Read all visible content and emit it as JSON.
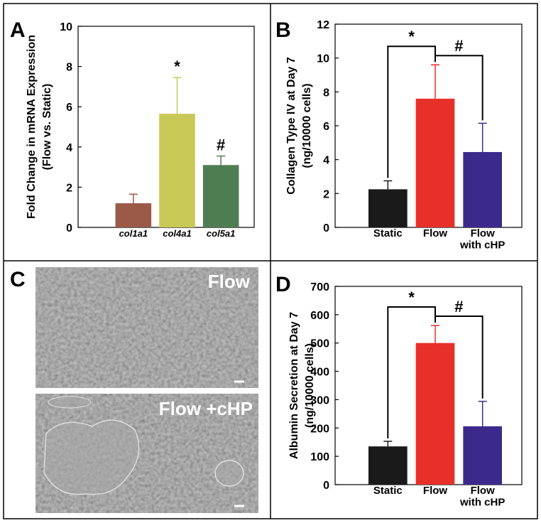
{
  "chart_data": [
    {
      "panel": "A",
      "type": "bar",
      "ylabel": [
        "Fold Change in mRNA Expression",
        "(Flow vs. Static)"
      ],
      "categories": [
        "col1a1",
        "col4a1",
        "col5a1"
      ],
      "category_style": "italic",
      "values": [
        1.2,
        5.65,
        3.1
      ],
      "errors": [
        0.45,
        1.8,
        0.45
      ],
      "colors": [
        "#9b5a47",
        "#c9c957",
        "#4f7d52"
      ],
      "ylim": [
        0,
        10
      ],
      "yticks": [
        0,
        2,
        4,
        6,
        8,
        10
      ],
      "annotations": [
        {
          "text": "*",
          "category": 1
        },
        {
          "text": "#",
          "category": 2
        }
      ]
    },
    {
      "panel": "B",
      "type": "bar",
      "ylabel": [
        "Collagen Type IV at Day 7",
        "(ng/10000 cells)"
      ],
      "categories": [
        "Static",
        "Flow",
        "Flow\nwith cHP"
      ],
      "category_style": "normal",
      "values": [
        2.25,
        7.6,
        4.45
      ],
      "errors": [
        0.5,
        2.0,
        1.7
      ],
      "colors": [
        "#1a1a1a",
        "#e8302a",
        "#3b2a8c"
      ],
      "ylim": [
        0,
        12
      ],
      "yticks": [
        0,
        2,
        4,
        6,
        8,
        10,
        12
      ],
      "annotations": [
        {
          "text": "*",
          "from": 0,
          "to": 1
        },
        {
          "text": "#",
          "from": 1,
          "to": 2
        }
      ]
    },
    {
      "panel": "D",
      "type": "bar",
      "ylabel": [
        "Albumin Secretion at Day 7",
        "(ng/10000 cells)"
      ],
      "categories": [
        "Static",
        "Flow",
        "Flow\nwith cHP"
      ],
      "category_style": "normal",
      "values": [
        135,
        500,
        206
      ],
      "errors": [
        18,
        62,
        88
      ],
      "colors": [
        "#1a1a1a",
        "#e8302a",
        "#3b2a8c"
      ],
      "ylim": [
        0,
        700
      ],
      "yticks": [
        0,
        100,
        200,
        300,
        400,
        500,
        600,
        700
      ],
      "annotations": [
        {
          "text": "*",
          "from": 0,
          "to": 1
        },
        {
          "text": "#",
          "from": 1,
          "to": 2
        }
      ]
    }
  ],
  "images": {
    "panel": "C",
    "labels": [
      "Flow",
      "Flow +cHP"
    ]
  }
}
